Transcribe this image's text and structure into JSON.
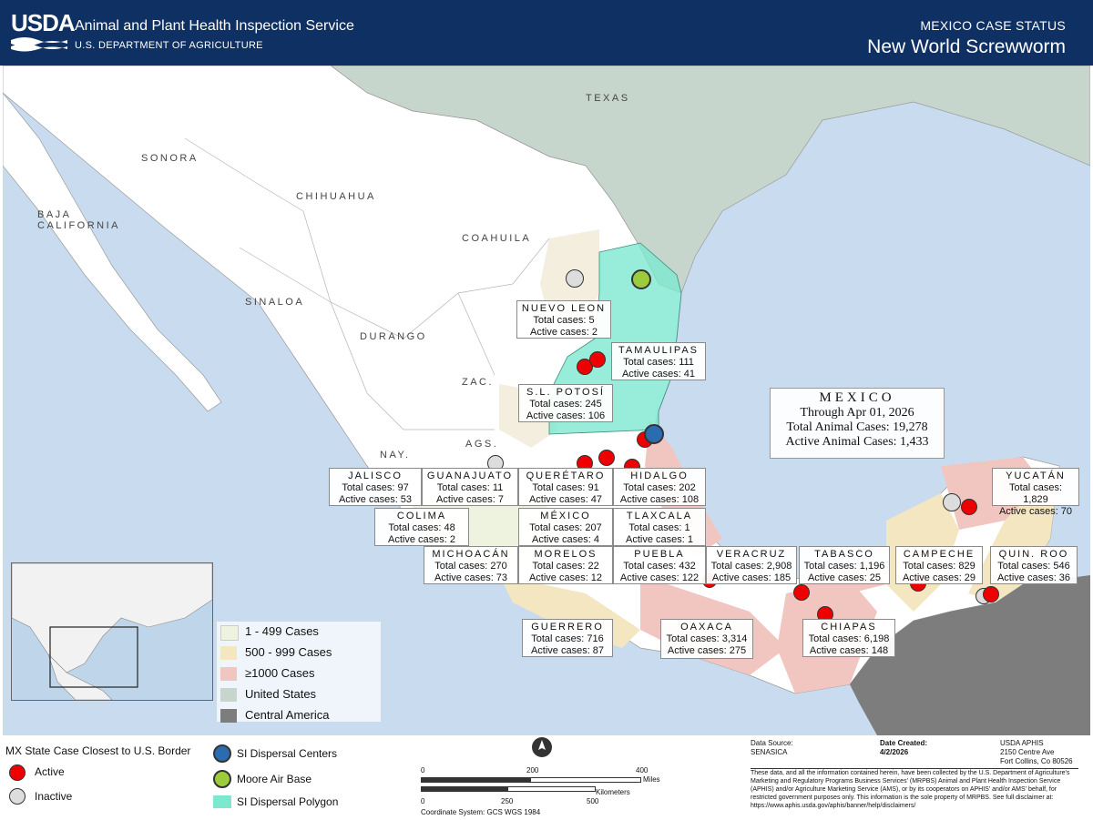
{
  "header": {
    "logo": "USDA",
    "agency": "Animal and Plant Health Inspection Service",
    "department": "U.S. DEPARTMENT OF AGRICULTURE",
    "status_label": "MEXICO CASE STATUS",
    "title": "New World Screwworm"
  },
  "map_labels": {
    "texas": "TEXAS",
    "sonora": "SONORA",
    "chihuahua": "CHIHUAHUA",
    "baja_california": "BAJA CALIFORNIA",
    "coahuila": "COAHUILA",
    "sinaloa": "SINALOA",
    "durango": "DURANGO",
    "zac": "ZAC.",
    "nay": "NAY.",
    "ags": "AGS."
  },
  "summary": {
    "country": "MEXICO",
    "through": "Through Apr 01, 2026",
    "total": "Total Animal Cases: 19,278",
    "active": "Active Animal Cases: 1,433"
  },
  "states": [
    {
      "name": "NUEVO LEON",
      "total": "Total cases: 5",
      "active": "Active cases: 2"
    },
    {
      "name": "TAMAULIPAS",
      "total": "Total cases: 111",
      "active": "Active cases: 41"
    },
    {
      "name": "S.L. POTOSÍ",
      "total": "Total cases: 245",
      "active": "Active cases: 106"
    },
    {
      "name": "JALISCO",
      "total": "Total cases: 97",
      "active": "Active cases: 53"
    },
    {
      "name": "GUANAJUATO",
      "total": "Total cases: 11",
      "active": "Active cases: 7"
    },
    {
      "name": "QUERÉTARO",
      "total": "Total cases: 91",
      "active": "Active cases: 47"
    },
    {
      "name": "HIDALGO",
      "total": "Total cases: 202",
      "active": "Active cases: 108"
    },
    {
      "name": "COLIMA",
      "total": "Total cases: 48",
      "active": "Active cases: 2"
    },
    {
      "name": "MÉXICO",
      "total": "Total cases: 207",
      "active": "Active cases: 4"
    },
    {
      "name": "TLAXCALA",
      "total": "Total cases: 1",
      "active": "Active cases: 1"
    },
    {
      "name": "MICHOACÁN",
      "total": "Total cases: 270",
      "active": "Active cases: 73"
    },
    {
      "name": "MORELOS",
      "total": "Total cases: 22",
      "active": "Active cases: 12"
    },
    {
      "name": "PUEBLA",
      "total": "Total cases: 432",
      "active": "Active cases: 122"
    },
    {
      "name": "VERACRUZ",
      "total": "Total cases: 2,908",
      "active": "Active cases: 185"
    },
    {
      "name": "TABASCO",
      "total": "Total cases: 1,196",
      "active": "Active cases: 25"
    },
    {
      "name": "CAMPECHE",
      "total": "Total cases: 829",
      "active": "Active cases: 29"
    },
    {
      "name": "QUIN. ROO",
      "total": "Total cases: 546",
      "active": "Active cases: 36"
    },
    {
      "name": "YUCATÁN",
      "total": "Total cases: 1,829",
      "active": "Active cases: 70"
    },
    {
      "name": "GUERRERO",
      "total": "Total cases: 716",
      "active": "Active cases: 87"
    },
    {
      "name": "OAXACA",
      "total": "Total cases: 3,314",
      "active": "Active cases: 275"
    },
    {
      "name": "CHIAPAS",
      "total": "Total cases: 6,198",
      "active": "Active cases: 148"
    }
  ],
  "legend_map": {
    "items": [
      {
        "label": "1 - 499 Cases",
        "color": "#eef3e0"
      },
      {
        "label": "500 - 999 Cases",
        "color": "#f3e6c0"
      },
      {
        "label": "≥1000 Cases",
        "color": "#f2c6c0"
      },
      {
        "label": "United States",
        "color": "#c7d6cd"
      },
      {
        "label": "Central America",
        "color": "#7d7d7d"
      }
    ]
  },
  "footer": {
    "closest_title": "MX State Case Closest to U.S. Border",
    "active_label": "Active",
    "inactive_label": "Inactive",
    "dispersal_centers": "SI Dispersal Centers",
    "moore_air_base": "Moore Air Base",
    "dispersal_polygon": "SI Dispersal Polygon",
    "scale_miles": [
      "0",
      "200",
      "400"
    ],
    "miles_unit": "Miles",
    "scale_km": [
      "0",
      "250",
      "500"
    ],
    "km_unit": "Kilometers",
    "coord_system": "Coordinate System: GCS WGS 1984",
    "data_source_label": "Data Source:",
    "data_source": "SENASICA",
    "date_created_label": "Date Created:",
    "date_created": "4/2/2026",
    "org": "USDA APHIS",
    "address1": "2150 Centre Ave",
    "address2": "Fort Collins, Co 80526",
    "disclaimer": "These data, and all the information contained herein, have been collected by the U.S. Department of Agriculture's Marketing and Regulatory Programs Business Services' (MRPBS) Animal and Plant Health Inspection Service (APHIS) and/or Agriculture Marketing Service (AMS), or by its cooperators on APHIS' and/or AMS' behalf, for restricted government purposes only. This information is the sole property of MRPBS. See full disclaimer at: https://www.aphis.usda.gov/aphis/banner/help/disclaimers/"
  },
  "colors": {
    "header_bg": "#0f3063",
    "sea": "#c9dcef",
    "us_land": "#c7d6cd",
    "mx_land": "#ffffff",
    "tier1": "#eef3e0",
    "tier2": "#f3e6c0",
    "tier3": "#f2c6c0",
    "central_america": "#7d7d7d",
    "polygon": "#7de8cf",
    "active_dot": "#e00000"
  }
}
